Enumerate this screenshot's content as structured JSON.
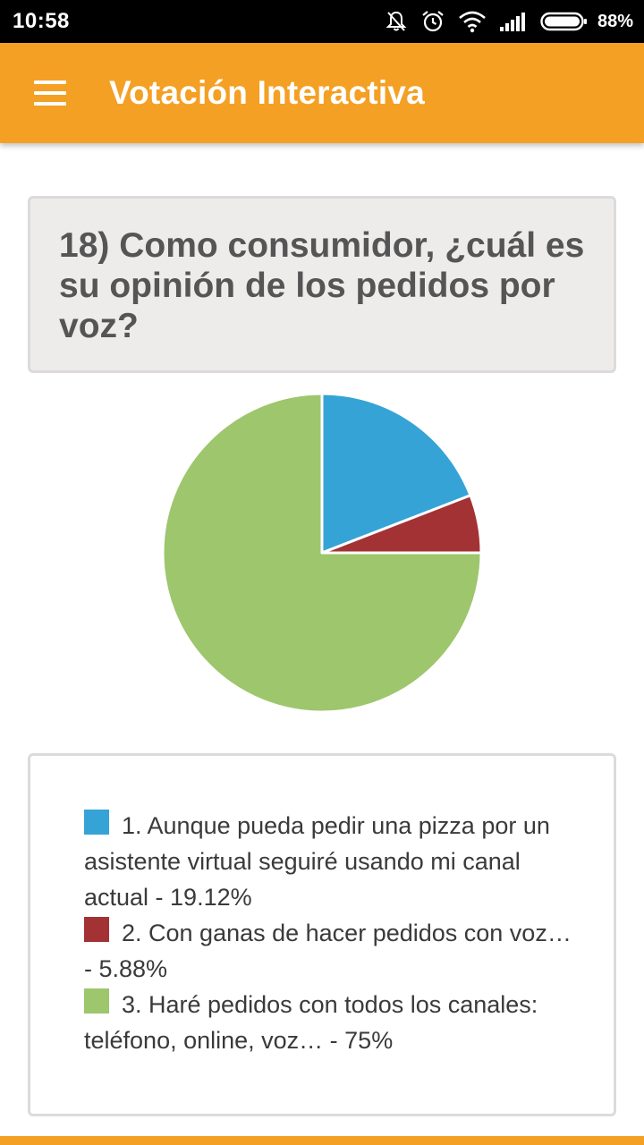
{
  "status_bar": {
    "time": "10:58",
    "battery": "88%",
    "icons": [
      "notifications-off-icon",
      "alarm-icon",
      "wifi-icon",
      "signal-icon",
      "battery-icon"
    ]
  },
  "app_bar": {
    "title": "Votación Interactiva",
    "menu_icon": "hamburger-menu-icon",
    "color": "#F4A024"
  },
  "question": {
    "text": "18) Como consumidor, ¿cuál es su opinión de los pedidos por voz?"
  },
  "legend": {
    "items": [
      {
        "text": "1. Aunque pueda pedir una pizza por un asistente virtual seguiré usando mi canal actual - 19.12%",
        "color": "#35A3D6"
      },
      {
        "text": "2. Con ganas de hacer pedidos con voz… - 5.88%",
        "color": "#A33235"
      },
      {
        "text": "3. Haré pedidos con todos los canales: teléfono, online, voz… - 75%",
        "color": "#9DC66D"
      }
    ]
  },
  "chart_data": {
    "type": "pie",
    "title": "",
    "categories": [
      "1. Aunque pueda pedir una pizza por un asistente virtual seguiré usando mi canal actual",
      "2. Con ganas de hacer pedidos con voz…",
      "3. Haré pedidos con todos los canales: teléfono, online, voz…"
    ],
    "values": [
      19.12,
      5.88,
      75
    ],
    "colors": [
      "#35A3D6",
      "#A33235",
      "#9DC66D"
    ],
    "start": "top",
    "direction": "clockwise"
  }
}
